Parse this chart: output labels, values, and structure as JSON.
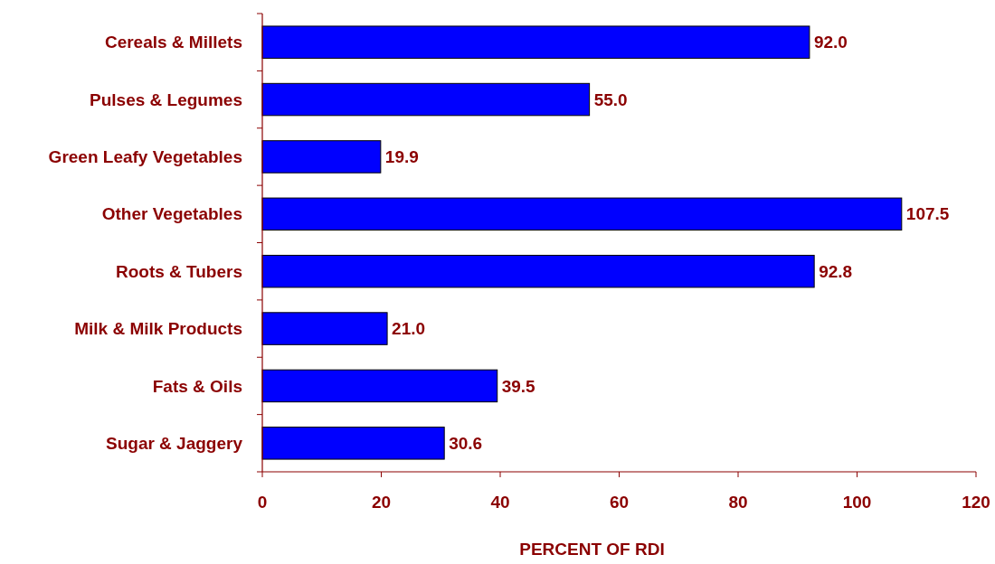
{
  "chart_data": {
    "type": "bar",
    "orientation": "horizontal",
    "xlabel": "PERCENT OF RDI",
    "categories": [
      "Cereals & Millets",
      "Pulses & Legumes",
      "Green Leafy Vegetables",
      "Other Vegetables",
      "Roots & Tubers",
      "Milk & Milk Products",
      "Fats & Oils",
      "Sugar & Jaggery"
    ],
    "values": [
      92.0,
      55.0,
      19.9,
      107.5,
      92.8,
      21.0,
      39.5,
      30.6
    ],
    "value_labels": [
      "92.0",
      "55.0",
      "19.9",
      "107.5",
      "92.8",
      "21.0",
      "39.5",
      "30.6"
    ],
    "color": "#0000ff",
    "xlim": [
      0,
      120
    ],
    "xticks": [
      0,
      20,
      40,
      60,
      80,
      100,
      120
    ],
    "grid": false
  }
}
